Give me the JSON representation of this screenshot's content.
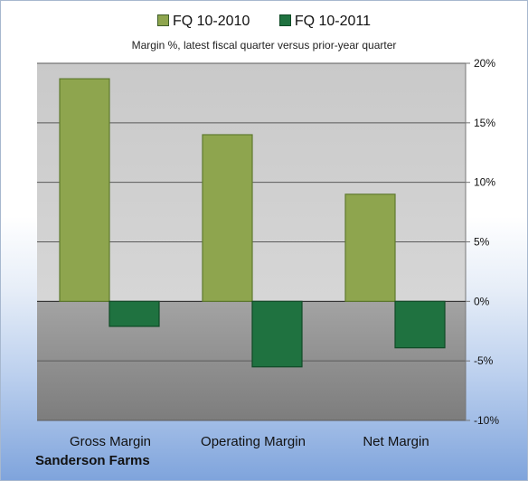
{
  "chart_data": {
    "type": "bar",
    "subtitle": "Margin %,  latest fiscal quarter versus prior-year quarter",
    "categories": [
      "Gross Margin",
      "Operating Margin",
      "Net Margin"
    ],
    "series": [
      {
        "name": "FQ 10-2010",
        "values": [
          18.7,
          14.0,
          9.0
        ],
        "color": "#8ea54e"
      },
      {
        "name": "FQ 10-2011",
        "values": [
          -2.1,
          -5.5,
          -3.9
        ],
        "color": "#1f7240"
      }
    ],
    "ylim": [
      -10,
      20
    ],
    "yticks": [
      20,
      15,
      10,
      5,
      0,
      -5,
      -10
    ],
    "ytick_labels": [
      "20%",
      "15%",
      "10%",
      "5%",
      "0%",
      "-5%",
      "-10%"
    ],
    "y_axis_side": "right",
    "grid": true,
    "legend_position": "top"
  },
  "footer": {
    "company": "Sanderson Farms"
  }
}
